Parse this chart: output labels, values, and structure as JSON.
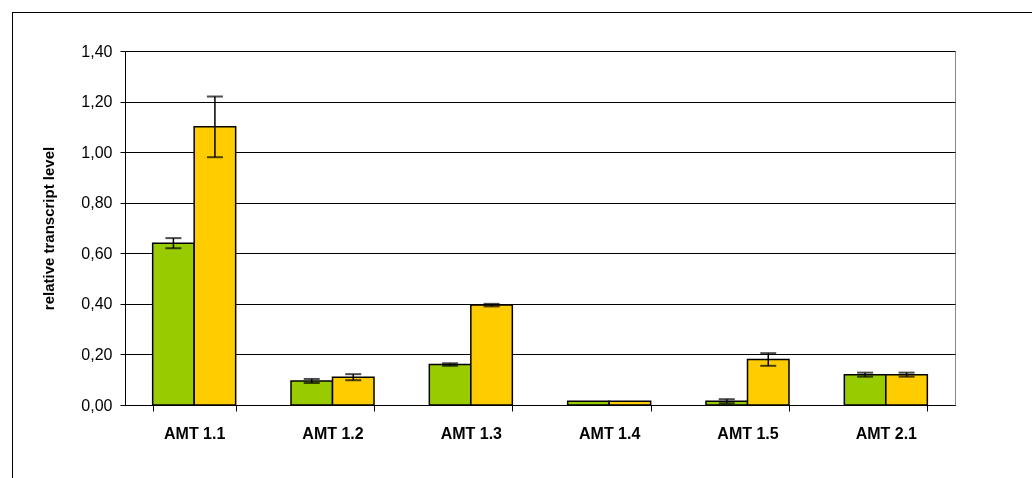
{
  "chart_data": {
    "type": "bar",
    "ylabel": "relative transcript level",
    "categories": [
      "AMT 1.1",
      "AMT 1.2",
      "AMT 1.3",
      "AMT 1.4",
      "AMT 1.5",
      "AMT 2.1"
    ],
    "series": [
      {
        "color": "#99cc00",
        "values": [
          0.64,
          0.095,
          0.16,
          0.015,
          0.015,
          0.12
        ],
        "errors": [
          0.02,
          0.008,
          0.005,
          null,
          0.008,
          0.008
        ]
      },
      {
        "color": "#ffcc00",
        "values": [
          1.1,
          0.11,
          0.395,
          0.015,
          0.18,
          0.12
        ],
        "errors": [
          0.12,
          0.012,
          0.005,
          null,
          0.025,
          0.008
        ]
      }
    ],
    "ylim": [
      0,
      1.4
    ],
    "yticks": [
      {
        "value": 0,
        "label": "0,00"
      },
      {
        "value": 0.2,
        "label": "0,20"
      },
      {
        "value": 0.4,
        "label": "0,40"
      },
      {
        "value": 0.6,
        "label": "0,60"
      },
      {
        "value": 0.8,
        "label": "0,80"
      },
      {
        "value": 1.0,
        "label": "1,00"
      },
      {
        "value": 1.2,
        "label": "1,20"
      },
      {
        "value": 1.4,
        "label": "1,40"
      }
    ],
    "grid": "y"
  }
}
